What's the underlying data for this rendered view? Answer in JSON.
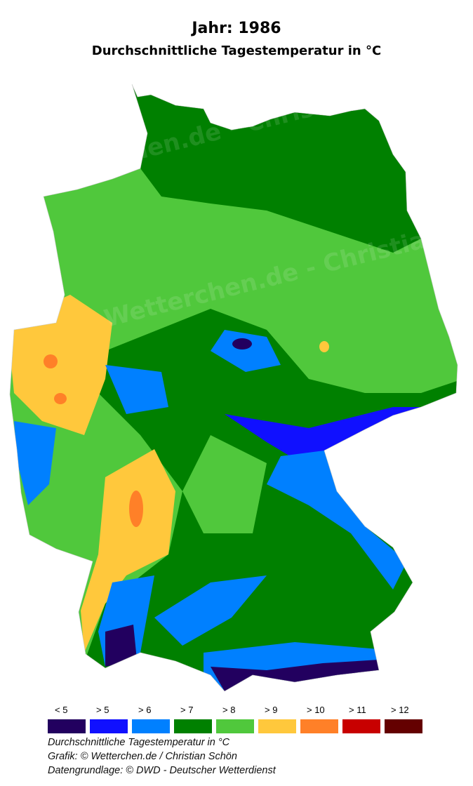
{
  "title": "Jahr: 1986",
  "subtitle": "Durchschnittliche Tagestemperatur in °C",
  "watermark": "Wetterchen.de - Christian Schön",
  "legend": [
    {
      "label": "< 5",
      "color": "#22005f"
    },
    {
      "label": "> 5",
      "color": "#1010ff"
    },
    {
      "label": "> 6",
      "color": "#0080ff"
    },
    {
      "label": "> 7",
      "color": "#008000"
    },
    {
      "label": "> 8",
      "color": "#50c83c"
    },
    {
      "label": "> 9",
      "color": "#ffc83c"
    },
    {
      "label": "> 10",
      "color": "#ff8028"
    },
    {
      "label": "> 11",
      "color": "#c80000"
    },
    {
      "label": "> 12",
      "color": "#640000"
    }
  ],
  "footer": {
    "line1": "Durchschnittliche Tagestemperatur in °C",
    "line2": "Grafik: © Wetterchen.de / Christian Schön",
    "line3": "Datengrundlage: © DWD - Deutscher Wetterdienst"
  }
}
